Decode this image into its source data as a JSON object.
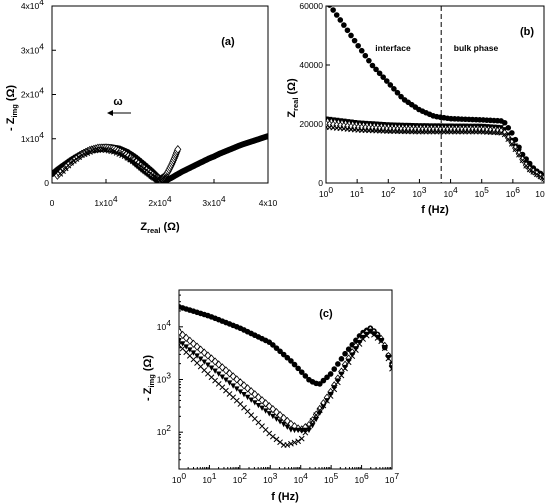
{
  "chart_data": [
    {
      "panel": "(a)",
      "type": "scatter",
      "xlim": [
        0,
        40000
      ],
      "ylim": [
        0,
        40000
      ],
      "x_ticks": [
        0,
        10000,
        20000,
        30000,
        40000
      ],
      "x_tick_labels": [
        "0",
        "1x10",
        "2x10",
        "3x10",
        "4x10"
      ],
      "x_tick_exps": [
        "",
        "4",
        "4",
        "4",
        ""
      ],
      "y_ticks": [
        0,
        10000,
        20000,
        30000,
        40000
      ],
      "y_tick_labels": [
        "0",
        "1x10",
        "2x10",
        "3x10",
        "4x10"
      ],
      "y_tick_exps": [
        "",
        "4",
        "4",
        "4",
        "4"
      ],
      "xlabel": "Z",
      "xlabel_sub": "real",
      "xlabel_unit": "(Ω)",
      "ylabel_prefix": "- Z",
      "ylabel_sub": "img",
      "ylabel_unit": "(Ω)",
      "annotation": "ω",
      "series": [
        {
          "marker": "circle-filled",
          "x": [
            0,
            1000,
            2000,
            3500,
            5000,
            6500,
            8000,
            9500,
            11000,
            12500,
            14000,
            15500,
            17000,
            18500,
            19500,
            20000,
            20500,
            21200,
            22000,
            23000,
            24000,
            25000,
            26000,
            27000,
            28000,
            29000,
            30000,
            31000,
            32000,
            33000,
            34000,
            35000,
            36000,
            37000,
            38000,
            39000,
            40000
          ],
          "y": [
            2000,
            3000,
            3900,
            5200,
            6300,
            7200,
            7800,
            8100,
            8100,
            7800,
            7000,
            5800,
            4300,
            2700,
            1500,
            700,
            300,
            600,
            1100,
            1800,
            2500,
            3100,
            3700,
            4300,
            4900,
            5500,
            6000,
            6600,
            7100,
            7600,
            8100,
            8600,
            9000,
            9400,
            9800,
            10200,
            10600
          ]
        },
        {
          "marker": "triangle-down-filled",
          "x": [
            1500,
            3000,
            4500,
            6000,
            7500,
            9000,
            10500,
            12000,
            13500,
            15000,
            16500,
            18000,
            19000,
            19800
          ],
          "y": [
            2300,
            4200,
            5800,
            6900,
            7600,
            7800,
            7600,
            7000,
            6000,
            4600,
            3000,
            1600,
            800,
            200
          ]
        },
        {
          "marker": "diamond-open",
          "x": [
            1000,
            2500,
            4000,
            5500,
            7000,
            8500,
            10000,
            11500,
            13000,
            14500,
            16000,
            17500,
            19000,
            20000,
            20800,
            21500,
            22200,
            22800,
            23300
          ],
          "y": [
            1700,
            3600,
            5200,
            6500,
            7400,
            7900,
            8000,
            7700,
            6900,
            5800,
            4400,
            2900,
            1500,
            800,
            1300,
            2600,
            4300,
            6000,
            7600
          ]
        },
        {
          "marker": "cross",
          "x": [
            1500,
            3500,
            5500,
            7500,
            9500,
            11500,
            13500,
            15500,
            17500,
            19000,
            20000,
            21000
          ],
          "y": [
            2100,
            4600,
            6300,
            7300,
            7600,
            7100,
            6100,
            4600,
            2900,
            1500,
            600,
            1500
          ]
        }
      ]
    },
    {
      "panel": "(b)",
      "type": "scatter",
      "x_scale": "log",
      "xlim": [
        1,
        10000000
      ],
      "ylim": [
        0,
        60000
      ],
      "x_tick_base": "10",
      "x_tick_exps": [
        "0",
        "1",
        "2",
        "3",
        "4",
        "5",
        "6",
        ""
      ],
      "x_tick_last": "10",
      "y_ticks": [
        0,
        20000,
        40000,
        60000
      ],
      "y_tick_labels": [
        "0",
        "20000",
        "40000",
        "60000"
      ],
      "xlabel": "f (Hz)",
      "ylabel": "Z",
      "ylabel_sub": "real",
      "ylabel_unit": "(Ω)",
      "vline_x": 5000,
      "annotations": [
        "interface",
        "bulk phase"
      ],
      "series": [
        {
          "marker": "circle-filled",
          "x": [
            1,
            3,
            10,
            30,
            100,
            300,
            1000,
            3000,
            10000,
            100000,
            500000,
            1000000,
            2000000,
            5000000,
            10000000
          ],
          "y": [
            62000,
            55000,
            47000,
            40000,
            34000,
            28500,
            24800,
            22600,
            21800,
            21400,
            21000,
            16500,
            9800,
            4500,
            2500
          ]
        },
        {
          "marker": "triangle-down-filled",
          "x": [
            1,
            10,
            100,
            1000,
            10000,
            100000,
            500000,
            1000000,
            3000000,
            10000000
          ],
          "y": [
            21800,
            20500,
            19800,
            19500,
            19400,
            19300,
            18800,
            14000,
            6000,
            1800
          ]
        },
        {
          "marker": "diamond-open",
          "x": [
            1,
            10,
            100,
            1000,
            10000,
            100000,
            500000,
            1000000,
            3000000,
            10000000
          ],
          "y": [
            20000,
            18800,
            18200,
            18000,
            18000,
            18000,
            17500,
            13200,
            5200,
            1500
          ]
        },
        {
          "marker": "cross",
          "x": [
            1,
            10,
            100,
            1000,
            10000,
            100000,
            500000,
            1000000,
            3000000,
            10000000
          ],
          "y": [
            19000,
            18000,
            17600,
            17400,
            17400,
            17400,
            17000,
            12800,
            5000,
            1400
          ]
        }
      ]
    },
    {
      "panel": "(c)",
      "type": "scatter",
      "x_scale": "log",
      "y_scale": "log",
      "xlim": [
        1,
        10000000
      ],
      "ylim": [
        20,
        50000
      ],
      "x_tick_base": "10",
      "x_tick_exps": [
        "0",
        "1",
        "2",
        "3",
        "4",
        "5",
        "6",
        "7"
      ],
      "y_tick_base": "10",
      "y_tick_exps": [
        "2",
        "3",
        "4"
      ],
      "xlabel": "f (Hz)",
      "ylabel_prefix": "- Z",
      "ylabel_sub": "img",
      "ylabel_unit": "(Ω)",
      "series": [
        {
          "marker": "circle-filled",
          "x": [
            1,
            10,
            100,
            1000,
            5000,
            20000,
            40000,
            100000,
            300000,
            1000000,
            2000000,
            4000000,
            10000000
          ],
          "y": [
            24000,
            16000,
            9500,
            5000,
            2200,
            950,
            800,
            1300,
            3200,
            7500,
            9500,
            6500,
            2000
          ]
        },
        {
          "marker": "diamond-open",
          "x": [
            1,
            10,
            100,
            1000,
            5000,
            10000,
            20000,
            100000,
            300000,
            1000000,
            2000000,
            5000000,
            10000000
          ],
          "y": [
            8000,
            2700,
            900,
            300,
            140,
            110,
            140,
            600,
            2000,
            6500,
            9000,
            5500,
            1800
          ]
        },
        {
          "marker": "triangle-down-filled",
          "x": [
            1,
            10,
            100,
            1000,
            5000,
            20000,
            100000,
            300000,
            1000000,
            2000000,
            5000000,
            10000000
          ],
          "y": [
            5500,
            1800,
            600,
            220,
            110,
            110,
            550,
            1800,
            6000,
            8500,
            5200,
            1700
          ]
        },
        {
          "marker": "cross",
          "x": [
            1,
            10,
            100,
            1000,
            3000,
            10000,
            30000,
            100000,
            300000,
            1000000,
            2000000,
            5000000,
            10000000
          ],
          "y": [
            4500,
            1200,
            350,
            90,
            55,
            70,
            200,
            500,
            1700,
            5500,
            8000,
            5000,
            1600
          ]
        }
      ]
    }
  ]
}
